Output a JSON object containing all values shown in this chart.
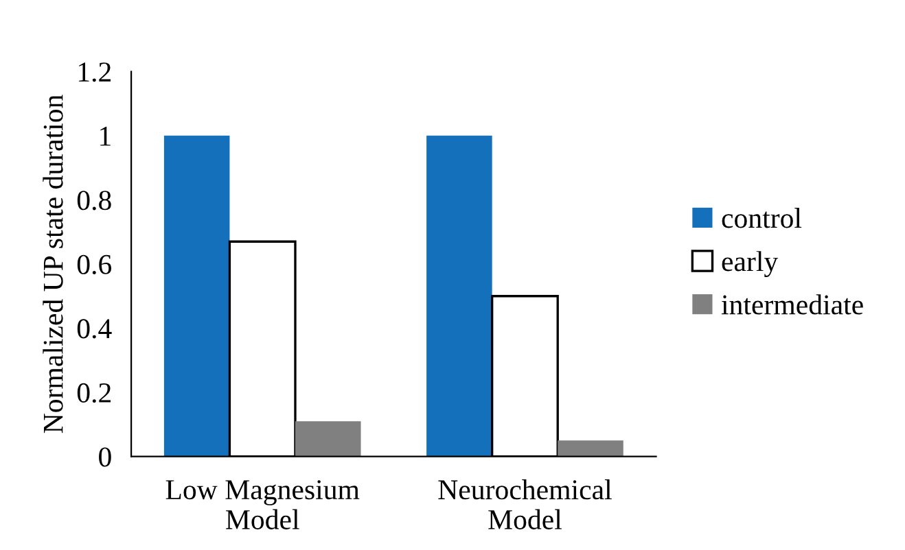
{
  "chart_data": {
    "type": "bar",
    "ylabel": "Normalized UP state duration",
    "categories": [
      "Low Magnesium\nModel",
      "Neurochemical\nModel"
    ],
    "series": [
      {
        "name": "control",
        "color": "#1570bc",
        "values": [
          1,
          1
        ]
      },
      {
        "name": "early",
        "color": "#ffffff",
        "values": [
          0.67,
          0.5
        ]
      },
      {
        "name": "intermediate",
        "color": "#808080",
        "values": [
          0.11,
          0.05
        ]
      }
    ],
    "ylim": [
      0,
      1.2
    ],
    "yticks": [
      0,
      0.2,
      0.4,
      0.6,
      0.8,
      1,
      1.2
    ],
    "grid": false,
    "legend": "right"
  }
}
